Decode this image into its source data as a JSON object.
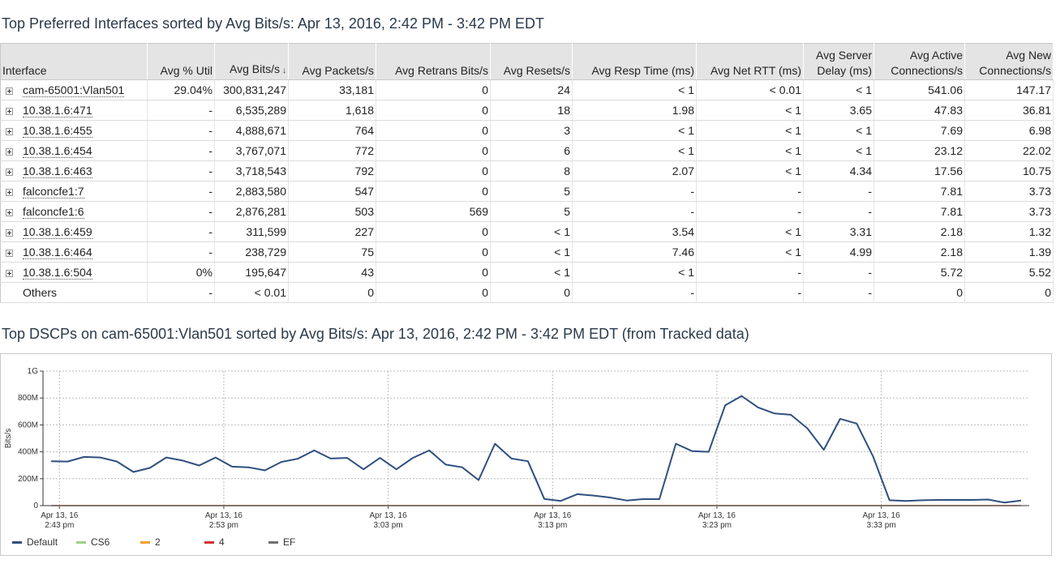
{
  "table_section": {
    "title": "Top Preferred Interfaces sorted by Avg Bits/s: Apr 13, 2016, 2:42 PM - 3:42 PM EDT",
    "headers": {
      "interface": "Interface",
      "util": "Avg % Util",
      "bits": "Avg Bits/s",
      "packets": "Avg Packets/s",
      "retrans": "Avg Retrans Bits/s",
      "resets": "Avg Resets/s",
      "resp": "Avg Resp Time (ms)",
      "rtt": "Avg Net RTT (ms)",
      "server_l1": "Avg Server",
      "server_l2": "Delay (ms)",
      "active_l1": "Avg Active",
      "active_l2": "Connections/s",
      "new_l1": "Avg New",
      "new_l2": "Connections/s"
    },
    "sort_indicator": "↓",
    "rows": [
      {
        "name": "cam-65001:Vlan501",
        "util": "29.04%",
        "bits": "300,831,247",
        "packets": "33,181",
        "retrans": "0",
        "resets": "24",
        "resp": "< 1",
        "rtt": "< 0.01",
        "server": "< 1",
        "active": "541.06",
        "new": "147.17"
      },
      {
        "name": "10.38.1.6:471",
        "util": "-",
        "bits": "6,535,289",
        "packets": "1,618",
        "retrans": "0",
        "resets": "18",
        "resp": "1.98",
        "rtt": "< 1",
        "server": "3.65",
        "active": "47.83",
        "new": "36.81"
      },
      {
        "name": "10.38.1.6:455",
        "util": "-",
        "bits": "4,888,671",
        "packets": "764",
        "retrans": "0",
        "resets": "3",
        "resp": "< 1",
        "rtt": "< 1",
        "server": "< 1",
        "active": "7.69",
        "new": "6.98"
      },
      {
        "name": "10.38.1.6:454",
        "util": "-",
        "bits": "3,767,071",
        "packets": "772",
        "retrans": "0",
        "resets": "6",
        "resp": "< 1",
        "rtt": "< 1",
        "server": "< 1",
        "active": "23.12",
        "new": "22.02"
      },
      {
        "name": "10.38.1.6:463",
        "util": "-",
        "bits": "3,718,543",
        "packets": "792",
        "retrans": "0",
        "resets": "8",
        "resp": "2.07",
        "rtt": "< 1",
        "server": "4.34",
        "active": "17.56",
        "new": "10.75"
      },
      {
        "name": "falconcfe1:7",
        "util": "-",
        "bits": "2,883,580",
        "packets": "547",
        "retrans": "0",
        "resets": "5",
        "resp": "-",
        "rtt": "-",
        "server": "-",
        "active": "7.81",
        "new": "3.73"
      },
      {
        "name": "falconcfe1:6",
        "util": "-",
        "bits": "2,876,281",
        "packets": "503",
        "retrans": "569",
        "resets": "5",
        "resp": "-",
        "rtt": "-",
        "server": "-",
        "active": "7.81",
        "new": "3.73"
      },
      {
        "name": "10.38.1.6:459",
        "util": "-",
        "bits": "311,599",
        "packets": "227",
        "retrans": "0",
        "resets": "< 1",
        "resp": "3.54",
        "rtt": "< 1",
        "server": "3.31",
        "active": "2.18",
        "new": "1.32"
      },
      {
        "name": "10.38.1.6:464",
        "util": "-",
        "bits": "238,729",
        "packets": "75",
        "retrans": "0",
        "resets": "< 1",
        "resp": "7.46",
        "rtt": "< 1",
        "server": "4.99",
        "active": "2.18",
        "new": "1.39"
      },
      {
        "name": "10.38.1.6:504",
        "util": "0%",
        "bits": "195,647",
        "packets": "43",
        "retrans": "0",
        "resets": "< 1",
        "resp": "< 1",
        "rtt": "-",
        "server": "-",
        "active": "5.72",
        "new": "5.52"
      }
    ],
    "others_row": {
      "name": "Others",
      "util": "-",
      "bits": "< 0.01",
      "packets": "0",
      "retrans": "0",
      "resets": "0",
      "resp": "-",
      "rtt": "-",
      "server": "-",
      "active": "0",
      "new": "0"
    }
  },
  "chart_section": {
    "title": "Top DSCPs on cam-65001:Vlan501 sorted by Avg Bits/s: Apr 13, 2016, 2:42 PM - 3:42 PM EDT (from Tracked data)"
  },
  "chart_data": {
    "type": "line",
    "ylabel": "Bits/s",
    "ylim": [
      0,
      1000000000
    ],
    "yticks": [
      {
        "value": 0,
        "label": "0"
      },
      {
        "value": 200000000,
        "label": "200M"
      },
      {
        "value": 400000000,
        "label": "400M"
      },
      {
        "value": 600000000,
        "label": "600M"
      },
      {
        "value": 800000000,
        "label": "800M"
      },
      {
        "value": 1000000000,
        "label": "1G"
      }
    ],
    "x_start_minute": 42,
    "x_end_minute": 102,
    "xticks": [
      {
        "minute": 43,
        "line1": "Apr 13, 16",
        "line2": "2:43 pm"
      },
      {
        "minute": 53,
        "line1": "Apr 13, 16",
        "line2": "2:53 pm"
      },
      {
        "minute": 63,
        "line1": "Apr 13, 16",
        "line2": "3:03 pm"
      },
      {
        "minute": 73,
        "line1": "Apr 13, 16",
        "line2": "3:13 pm"
      },
      {
        "minute": 83,
        "line1": "Apr 13, 16",
        "line2": "3:23 pm"
      },
      {
        "minute": 93,
        "line1": "Apr 13, 16",
        "line2": "3:33 pm"
      }
    ],
    "grid": true,
    "legend_position": "bottom-left",
    "series": [
      {
        "name": "Default",
        "color": "#2f4f7f",
        "values": [
          330000000,
          328000000,
          362000000,
          358000000,
          328000000,
          250000000,
          280000000,
          358000000,
          335000000,
          298000000,
          358000000,
          290000000,
          285000000,
          262000000,
          325000000,
          348000000,
          410000000,
          350000000,
          355000000,
          270000000,
          355000000,
          270000000,
          355000000,
          410000000,
          305000000,
          285000000,
          190000000,
          460000000,
          350000000,
          330000000,
          50000000,
          35000000,
          85000000,
          75000000,
          60000000,
          38000000,
          48000000,
          48000000,
          460000000,
          405000000,
          400000000,
          745000000,
          815000000,
          730000000,
          685000000,
          675000000,
          575000000,
          415000000,
          645000000,
          610000000,
          365000000,
          40000000,
          35000000,
          40000000,
          42000000,
          42000000,
          42000000,
          45000000,
          22000000,
          38000000
        ]
      },
      {
        "name": "CS6",
        "color": "#98d08a",
        "values": [
          0,
          0,
          0,
          0,
          0,
          0,
          0,
          0,
          0,
          0,
          0,
          0,
          0,
          0,
          0,
          0,
          0,
          0,
          0,
          0,
          0,
          0,
          0,
          0,
          0,
          0,
          0,
          0,
          0,
          0,
          0,
          0,
          0,
          0,
          0,
          0,
          0,
          0,
          0,
          0,
          0,
          0,
          0,
          0,
          0,
          0,
          0,
          0,
          0,
          0,
          0,
          0,
          0,
          0,
          0,
          0,
          0,
          0,
          0,
          0
        ]
      },
      {
        "name": "2",
        "color": "#f0a030",
        "values": [
          0,
          0,
          0,
          0,
          0,
          0,
          0,
          0,
          0,
          0,
          0,
          0,
          0,
          0,
          0,
          0,
          0,
          0,
          0,
          0,
          0,
          0,
          0,
          0,
          0,
          0,
          0,
          0,
          0,
          0,
          0,
          0,
          0,
          0,
          0,
          0,
          0,
          0,
          0,
          0,
          0,
          0,
          0,
          0,
          0,
          0,
          0,
          0,
          0,
          0,
          0,
          0,
          0,
          0,
          0,
          0,
          0,
          0,
          0,
          0
        ]
      },
      {
        "name": "4",
        "color": "#d0312d",
        "values": [
          0,
          0,
          0,
          0,
          0,
          0,
          0,
          0,
          0,
          0,
          0,
          0,
          0,
          0,
          0,
          0,
          0,
          0,
          0,
          0,
          0,
          0,
          0,
          0,
          0,
          0,
          0,
          0,
          0,
          0,
          0,
          0,
          0,
          0,
          0,
          0,
          0,
          0,
          0,
          0,
          0,
          0,
          0,
          0,
          0,
          0,
          0,
          0,
          0,
          0,
          0,
          0,
          0,
          0,
          0,
          0,
          0,
          0,
          0,
          0
        ]
      },
      {
        "name": "EF",
        "color": "#707070",
        "values": [
          0,
          0,
          0,
          0,
          0,
          0,
          0,
          0,
          0,
          0,
          0,
          0,
          0,
          0,
          0,
          0,
          0,
          0,
          0,
          0,
          0,
          0,
          0,
          0,
          0,
          0,
          0,
          0,
          0,
          0,
          0,
          0,
          0,
          0,
          0,
          0,
          0,
          0,
          0,
          0,
          0,
          0,
          0,
          0,
          0,
          0,
          0,
          0,
          0,
          0,
          0,
          0,
          0,
          0,
          0,
          0,
          0,
          0,
          0,
          0
        ]
      }
    ]
  }
}
